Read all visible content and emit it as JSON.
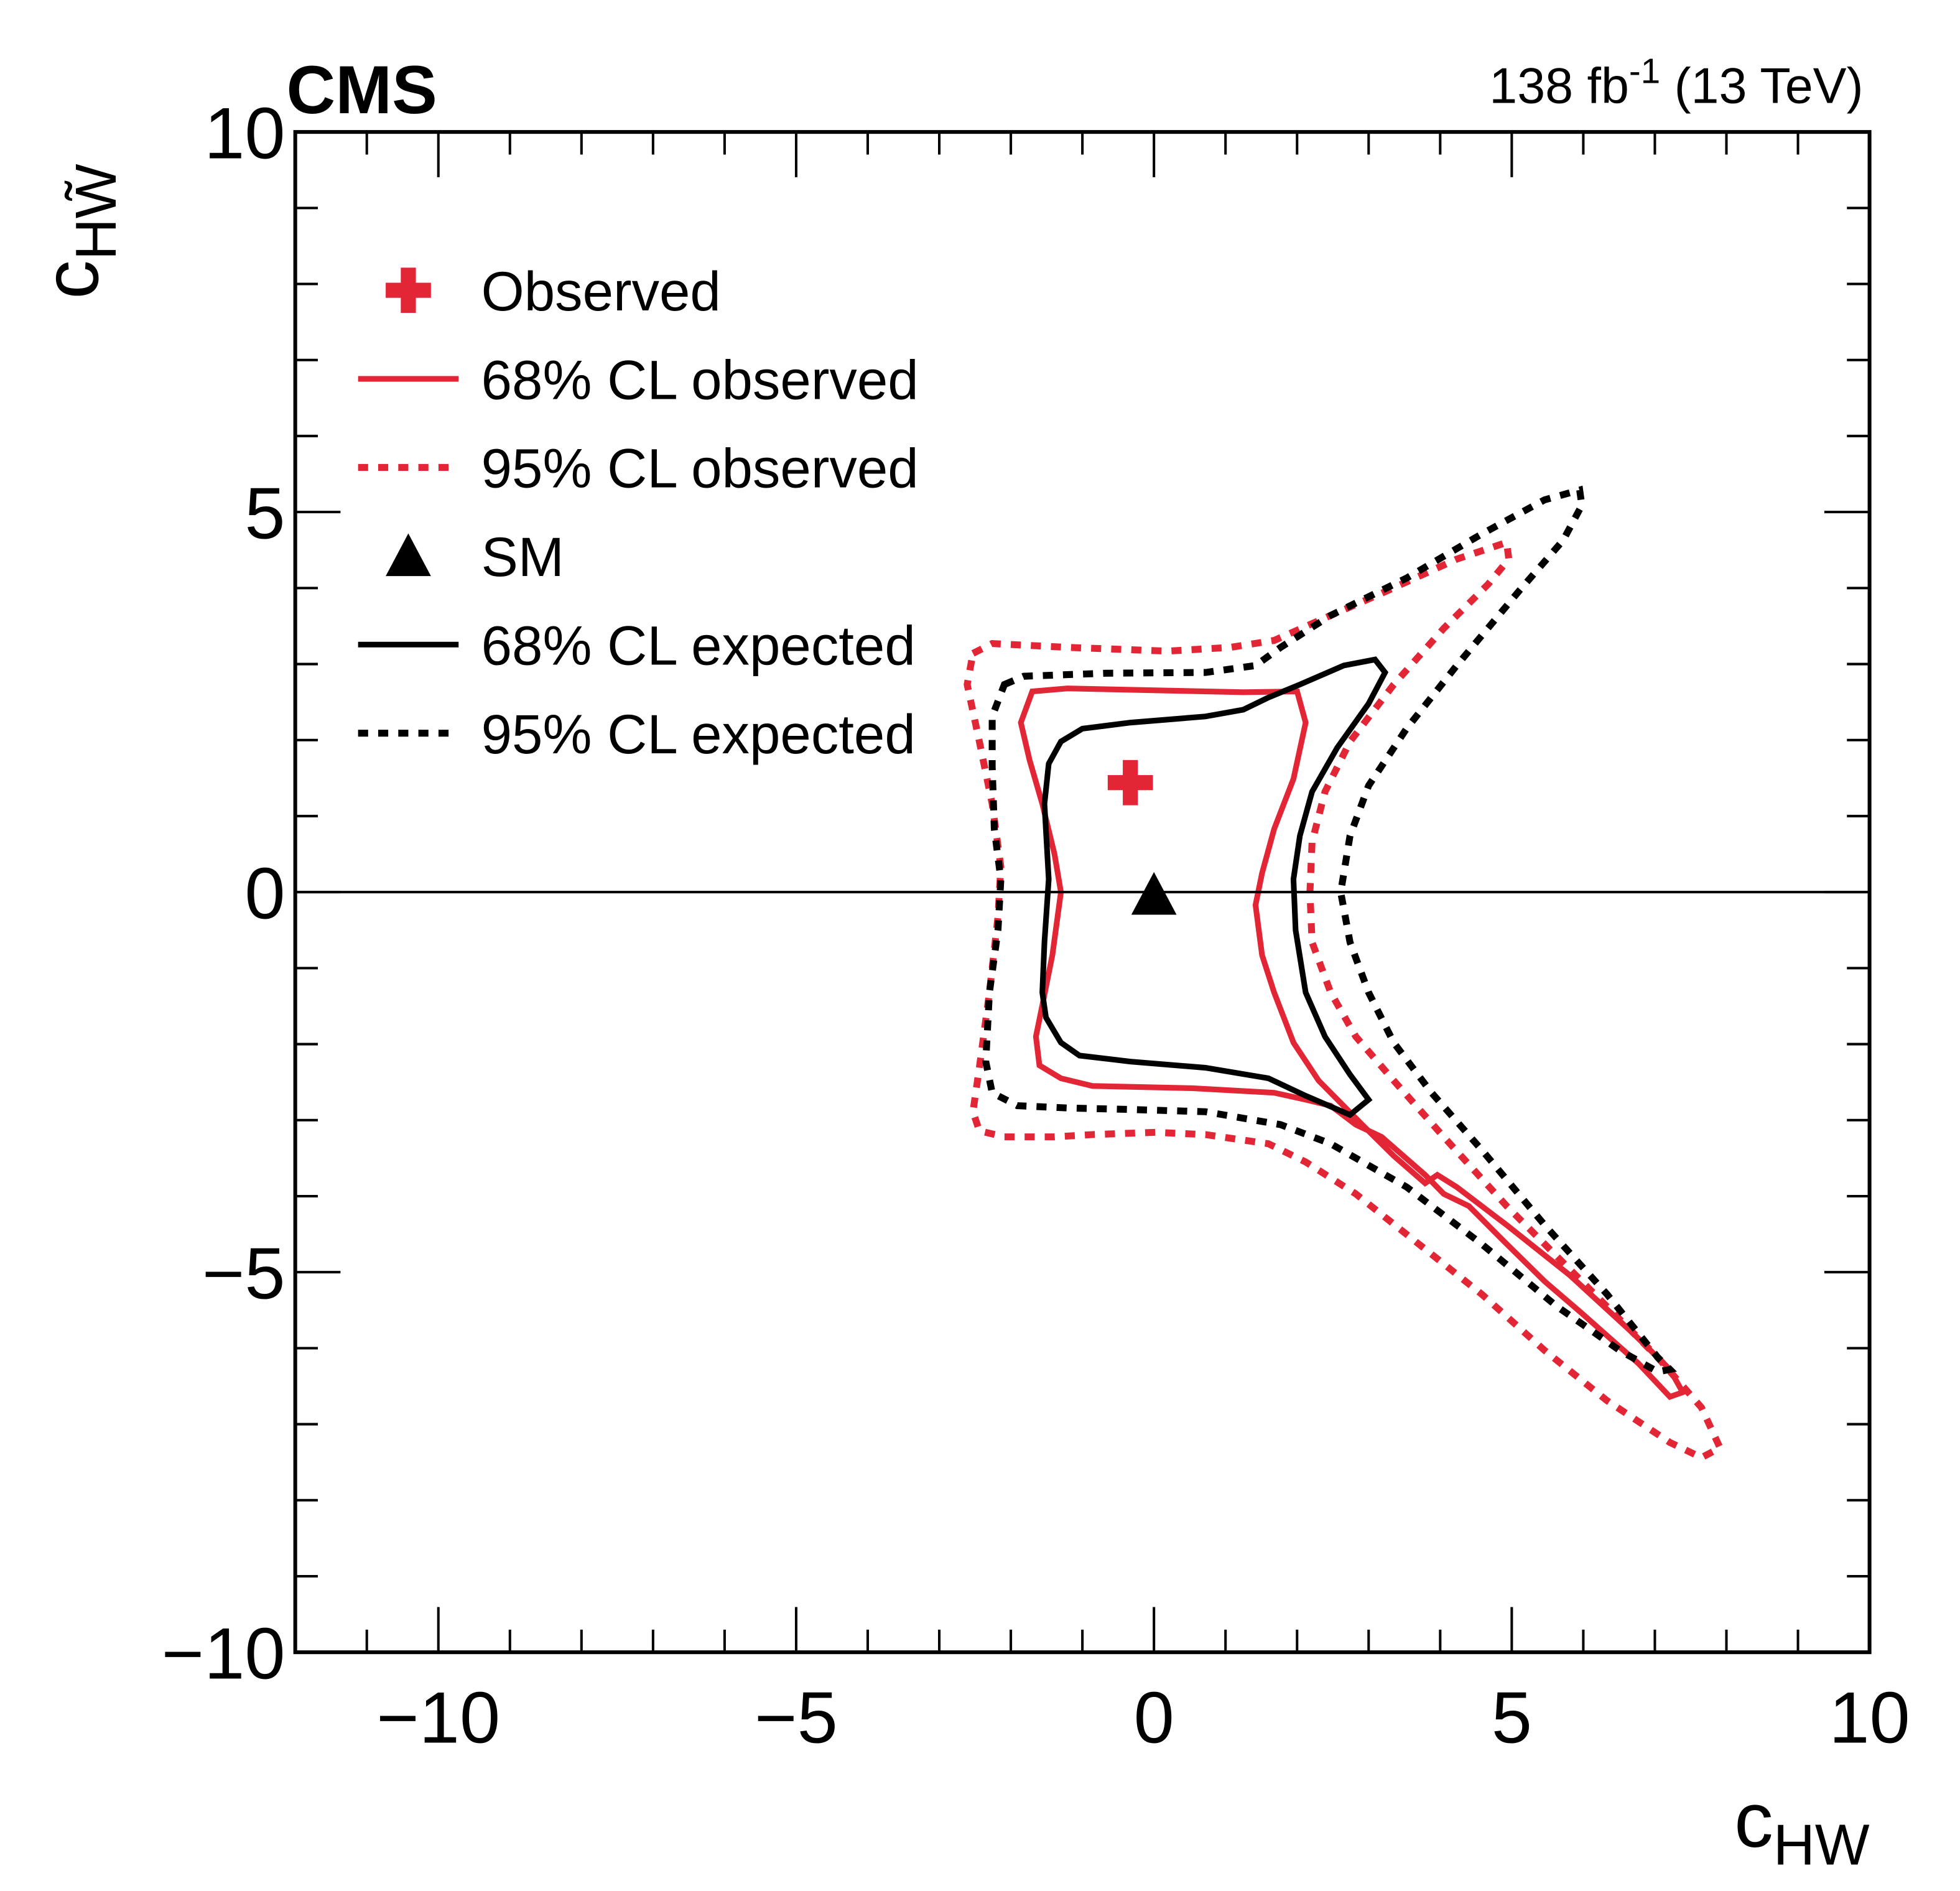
{
  "chart_data": {
    "type": "line",
    "title": "CMS",
    "lumi_label": "138 fb",
    "lumi_exponent": "-1",
    "lumi_suffix": " (13 TeV)",
    "xlabel": {
      "main": "c",
      "sub": "HW"
    },
    "ylabel": {
      "main": "c",
      "sub": "HW̃"
    },
    "xlim": [
      -12,
      10
    ],
    "ylim": [
      -10,
      10
    ],
    "x_major_ticks": [
      -10,
      -5,
      0,
      5,
      10
    ],
    "x_tick_labels": [
      "−10",
      "−5",
      "0",
      "5",
      "10"
    ],
    "y_major_ticks": [
      -10,
      -5,
      0,
      5,
      10
    ],
    "y_tick_labels": [
      "−10",
      "−5",
      "0",
      "5",
      "10"
    ],
    "minor_tick_step": 1,
    "grid": false,
    "reference_line_y": 0,
    "legend_placement": "top-left",
    "colors": {
      "observed": "#e32636",
      "expected": "#000000"
    },
    "legend": [
      {
        "label": "Observed",
        "marker": "cross",
        "color": "#e32636"
      },
      {
        "label": "68% CL observed",
        "marker": "solid-line",
        "color": "#e32636"
      },
      {
        "label": "95% CL observed",
        "marker": "dotted-line",
        "color": "#e32636"
      },
      {
        "label": "SM",
        "marker": "triangle",
        "color": "#000000"
      },
      {
        "label": "68% CL expected",
        "marker": "solid-line",
        "color": "#000000"
      },
      {
        "label": "95% CL expected",
        "marker": "dotted-line",
        "color": "#000000"
      }
    ],
    "points": {
      "observed": {
        "x": -0.33,
        "y": 1.44
      },
      "sm": {
        "x": 0,
        "y": 0
      }
    },
    "series": [
      {
        "name": "68% CL observed",
        "style": "solid",
        "color": "#e32636",
        "x": [
          -1.7,
          -1.21,
          1.25,
          2.0,
          2.12,
          1.95,
          1.68,
          1.51,
          1.42,
          1.51,
          1.68,
          1.95,
          2.3,
          2.91,
          3.35,
          3.79,
          3.96,
          4.23,
          4.93,
          5.81,
          6.68,
          7.21,
          7.39,
          7.21,
          6.77,
          5.98,
          5.46,
          4.93,
          4.4,
          4.05,
          3.79,
          3.18,
          2.82,
          2.47,
          2.12,
          1.68,
          0.54,
          -0.86,
          -1.3,
          -1.6,
          -1.65,
          -1.56,
          -1.42,
          -1.3,
          -1.39,
          -1.56,
          -1.74,
          -1.86
        ],
        "y": [
          2.64,
          2.68,
          2.63,
          2.64,
          2.23,
          1.49,
          0.83,
          0.25,
          -0.17,
          -0.83,
          -1.32,
          -1.98,
          -2.48,
          -3.06,
          -3.47,
          -3.83,
          -3.72,
          -3.88,
          -4.38,
          -5.04,
          -5.79,
          -6.28,
          -6.58,
          -6.64,
          -6.2,
          -5.54,
          -5.12,
          -4.63,
          -4.13,
          -3.97,
          -3.72,
          -3.22,
          -3.06,
          -2.81,
          -2.73,
          -2.64,
          -2.58,
          -2.55,
          -2.45,
          -2.28,
          -1.9,
          -1.49,
          -0.83,
          0.0,
          0.5,
          1.16,
          1.74,
          2.23
        ]
      },
      {
        "name": "95% CL observed",
        "style": "dotted",
        "color": "#e32636",
        "x": [
          -2.53,
          -2.26,
          -1.21,
          0.19,
          1.07,
          1.68,
          2.47,
          3.18,
          4.23,
          4.93,
          4.96,
          4.67,
          4.05,
          3.35,
          2.74,
          2.39,
          2.21,
          2.18,
          2.21,
          2.47,
          2.82,
          3.35,
          4.05,
          4.93,
          5.98,
          7.04,
          7.65,
          7.91,
          7.65,
          7.21,
          6.33,
          5.46,
          4.58,
          3.7,
          2.82,
          2.12,
          1.6,
          0.72,
          0.02,
          -0.86,
          -1.39,
          -2.09,
          -2.44,
          -2.53,
          -2.44,
          -2.3,
          -2.18,
          -2.14,
          -2.26,
          -2.44,
          -2.61
        ],
        "y": [
          3.14,
          3.27,
          3.22,
          3.17,
          3.22,
          3.31,
          3.64,
          3.93,
          4.38,
          4.6,
          4.38,
          4.05,
          3.47,
          2.73,
          1.98,
          1.32,
          0.66,
          0.0,
          -0.66,
          -1.32,
          -1.9,
          -2.48,
          -3.22,
          -4.13,
          -5.12,
          -6.12,
          -6.78,
          -7.31,
          -7.44,
          -7.24,
          -6.69,
          -6.03,
          -5.29,
          -4.63,
          -3.97,
          -3.55,
          -3.31,
          -3.19,
          -3.16,
          -3.19,
          -3.22,
          -3.22,
          -3.14,
          -2.89,
          -2.31,
          -1.32,
          -0.33,
          0.33,
          1.16,
          1.98,
          2.73
        ]
      },
      {
        "name": "68% CL expected",
        "style": "solid",
        "color": "#000000",
        "x": [
          -1.3,
          -1.0,
          -0.33,
          0.72,
          1.25,
          1.6,
          2.04,
          2.65,
          3.09,
          3.23,
          3.0,
          2.56,
          2.21,
          2.04,
          1.95,
          1.98,
          2.12,
          2.39,
          2.74,
          3.0,
          2.74,
          2.12,
          1.6,
          0.72,
          -0.33,
          -1.04,
          -1.3,
          -1.51,
          -1.56,
          -1.53,
          -1.47,
          -1.53,
          -1.47
        ],
        "y": [
          1.98,
          2.15,
          2.23,
          2.31,
          2.4,
          2.56,
          2.73,
          2.98,
          3.06,
          2.89,
          2.48,
          1.9,
          1.32,
          0.74,
          0.17,
          -0.5,
          -1.32,
          -1.9,
          -2.4,
          -2.73,
          -2.93,
          -2.68,
          -2.45,
          -2.31,
          -2.23,
          -2.15,
          -1.98,
          -1.65,
          -1.32,
          -0.66,
          0.17,
          1.16,
          1.69
        ]
      },
      {
        "name": "95% CL expected",
        "style": "dotted",
        "color": "#000000",
        "x": [
          -2.09,
          -1.82,
          -0.68,
          0.72,
          1.42,
          1.77,
          2.47,
          3.53,
          4.58,
          5.46,
          5.95,
          5.98,
          5.72,
          5.11,
          4.23,
          3.53,
          3.0,
          2.74,
          2.61,
          2.74,
          3.0,
          3.35,
          3.88,
          4.58,
          5.46,
          6.33,
          7.04,
          7.21,
          7.04,
          6.51,
          5.63,
          4.58,
          3.53,
          2.47,
          1.77,
          0.72,
          -0.33,
          -1.21,
          -1.91,
          -2.26,
          -2.35,
          -2.3,
          -2.18,
          -2.14,
          -2.23,
          -2.26,
          -2.26
        ],
        "y": [
          2.73,
          2.84,
          2.88,
          2.89,
          2.98,
          3.22,
          3.64,
          4.13,
          4.71,
          5.16,
          5.29,
          5.09,
          4.63,
          3.97,
          2.98,
          2.15,
          1.4,
          0.74,
          0.0,
          -0.66,
          -1.32,
          -1.98,
          -2.64,
          -3.39,
          -4.38,
          -5.29,
          -6.12,
          -6.28,
          -6.31,
          -6.03,
          -5.45,
          -4.63,
          -3.88,
          -3.31,
          -3.06,
          -2.89,
          -2.86,
          -2.84,
          -2.81,
          -2.64,
          -2.23,
          -1.32,
          -0.5,
          0.17,
          0.83,
          1.65,
          2.31
        ]
      }
    ]
  }
}
